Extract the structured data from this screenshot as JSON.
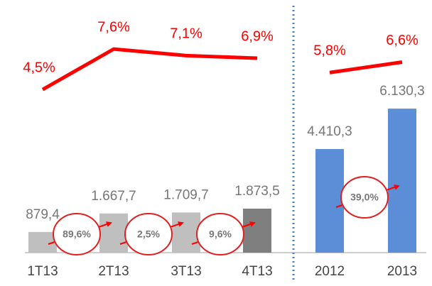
{
  "chart_data": [
    {
      "type": "bar_line",
      "categories": [
        "1T13",
        "2T13",
        "3T13",
        "4T13"
      ],
      "values": [
        879.4,
        1667.7,
        1709.7,
        1873.5
      ],
      "value_labels": [
        "879,4",
        "1.667,7",
        "1.709,7",
        "1.873,5"
      ],
      "colors": [
        "#bfbfbf",
        "#bfbfbf",
        "#bfbfbf",
        "#7f7f7f"
      ],
      "line_values": [
        4.5,
        7.6,
        7.1,
        6.9
      ],
      "line_value_labels": [
        "4,5%",
        "7,6%",
        "7,1%",
        "6,9%"
      ],
      "line_color": "#ff0000",
      "annotations": [
        "89,6%",
        "2,5%",
        "9,6%"
      ],
      "ylim": [
        0,
        10000
      ],
      "y2lim": [
        -8,
        10
      ]
    },
    {
      "type": "bar_line",
      "categories": [
        "2012",
        "2013"
      ],
      "values": [
        4410.3,
        6130.3
      ],
      "value_labels": [
        "4.410,3",
        "6.130,3"
      ],
      "colors": [
        "#5b8ed6",
        "#5b8ed6"
      ],
      "line_values": [
        5.8,
        6.6
      ],
      "line_value_labels": [
        "5,8%",
        "6,6%"
      ],
      "line_color": "#ff0000",
      "annotations": [
        "39,0%"
      ],
      "ylim": [
        0,
        10000
      ],
      "y2lim": [
        -8,
        10
      ]
    }
  ]
}
